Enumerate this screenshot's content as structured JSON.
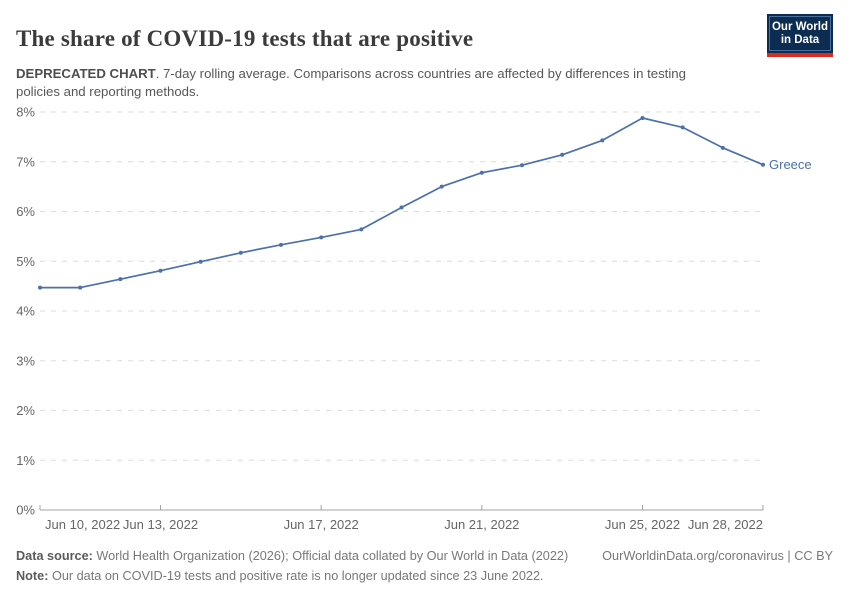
{
  "header": {
    "title": "The share of COVID-19 tests that are positive",
    "subtitle_bold": "DEPRECATED CHART",
    "subtitle_rest": ". 7-day rolling average. Comparisons across countries are affected by differences in testing policies and reporting methods.",
    "logo": {
      "line1": "Our World",
      "line2": "in Data"
    }
  },
  "chart_data": {
    "type": "line",
    "title": "The share of COVID-19 tests that are positive",
    "x": [
      "Jun 10, 2022",
      "Jun 11, 2022",
      "Jun 12, 2022",
      "Jun 13, 2022",
      "Jun 14, 2022",
      "Jun 15, 2022",
      "Jun 16, 2022",
      "Jun 17, 2022",
      "Jun 18, 2022",
      "Jun 19, 2022",
      "Jun 20, 2022",
      "Jun 21, 2022",
      "Jun 22, 2022",
      "Jun 23, 2022",
      "Jun 24, 2022",
      "Jun 25, 2022",
      "Jun 26, 2022",
      "Jun 27, 2022",
      "Jun 28, 2022"
    ],
    "series": [
      {
        "name": "Greece",
        "values": [
          4.47,
          4.47,
          4.64,
          4.81,
          4.99,
          5.17,
          5.33,
          5.48,
          5.64,
          6.08,
          6.5,
          6.78,
          6.93,
          7.14,
          7.43,
          7.88,
          7.69,
          7.28,
          6.94
        ]
      }
    ],
    "ylim": [
      0,
      8
    ],
    "ytick_labels": [
      "0%",
      "1%",
      "2%",
      "3%",
      "4%",
      "5%",
      "6%",
      "7%",
      "8%"
    ],
    "xtick_labels": [
      "Jun 10, 2022",
      "Jun 13, 2022",
      "Jun 17, 2022",
      "Jun 21, 2022",
      "Jun 25, 2022",
      "Jun 28, 2022"
    ],
    "xtick_indices": [
      0,
      3,
      7,
      11,
      15,
      18
    ],
    "grid": "horizontal-dashed",
    "legend_position": "end-of-line"
  },
  "footer": {
    "source_bold": "Data source:",
    "source_rest": " World Health Organization (2026); Official data collated by Our World in Data (2022)",
    "link": "OurWorldinData.org/coronavirus | CC BY",
    "note_bold": "Note:",
    "note_rest": " Our data on COVID-19 tests and positive rate is no longer updated since 23 June 2022."
  },
  "colors": {
    "line": "#4C70A9",
    "grid": "#dcdcdc",
    "axis": "#a3a3a3",
    "tick_label": "#666666",
    "title": "#3b3b3b",
    "logo_bg": "#0c2c52",
    "logo_red": "#dc2c22"
  }
}
